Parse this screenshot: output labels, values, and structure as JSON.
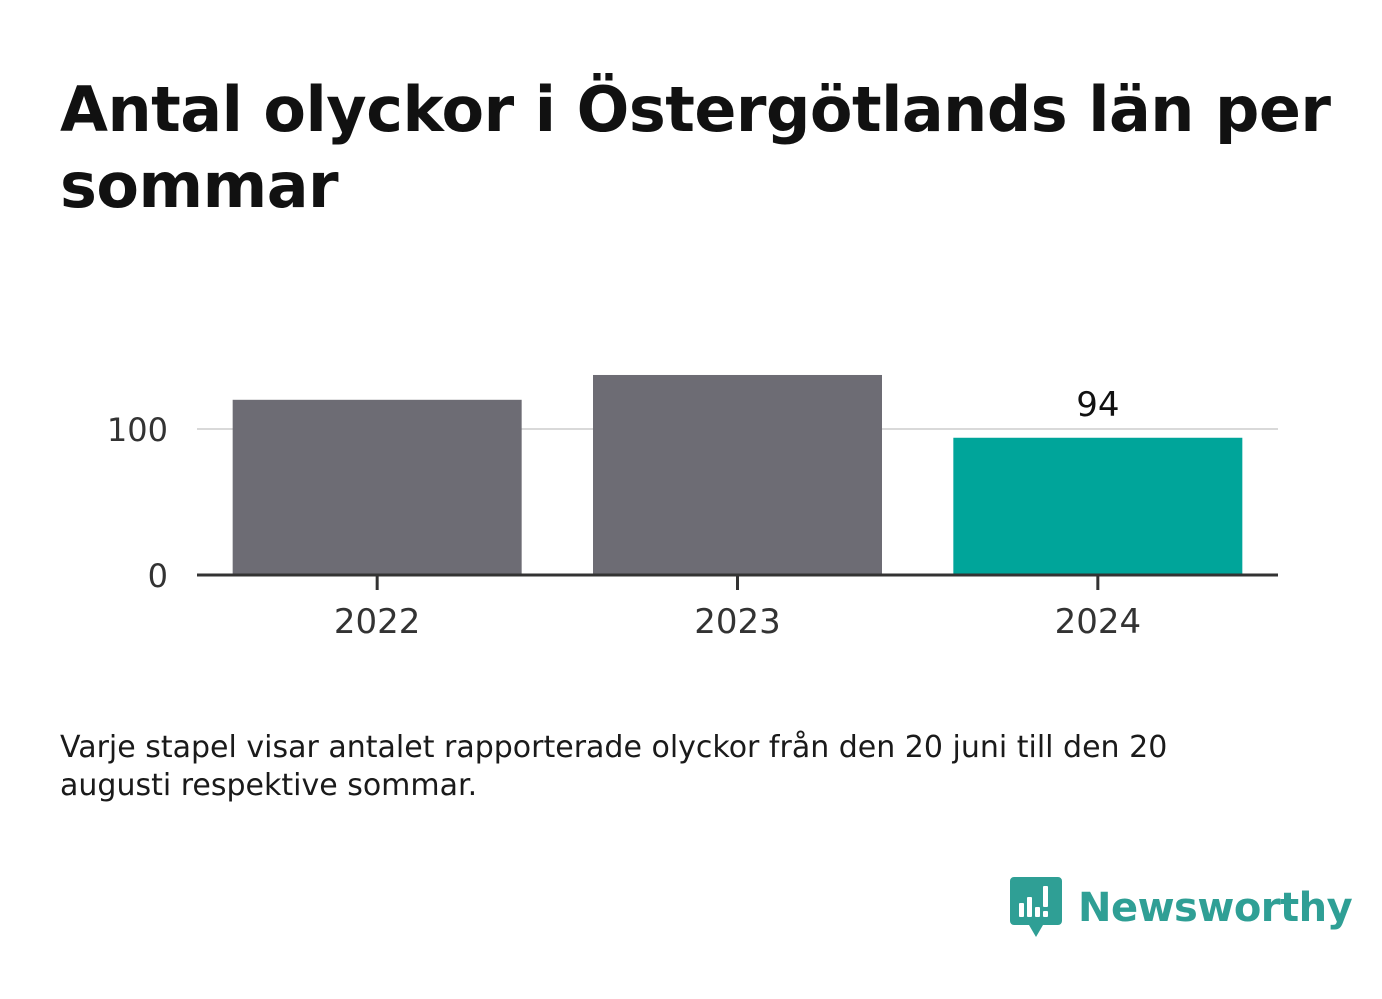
{
  "chart_data": {
    "type": "bar",
    "title": "Antal olyckor i Östergötlands län per sommar",
    "categories": [
      "2022",
      "2023",
      "2024"
    ],
    "values": [
      120,
      137,
      94
    ],
    "data_labels": [
      "",
      "",
      "94"
    ],
    "yticks": [
      "0",
      "100"
    ],
    "ylim": [
      0,
      140
    ],
    "xlabel": "",
    "ylabel": "",
    "grid": "horizontal",
    "legend": "none",
    "colors": [
      "#6d6c74",
      "#6d6c74",
      "#00a59a"
    ]
  },
  "note": "Varje stapel visar antalet rapporterade olyckor från den 20 juni till den 20 augusti respektive sommar.",
  "brand": {
    "name": "Newsworthy",
    "icon": "newsworthy-logo-icon",
    "color": "#2f9f95"
  }
}
